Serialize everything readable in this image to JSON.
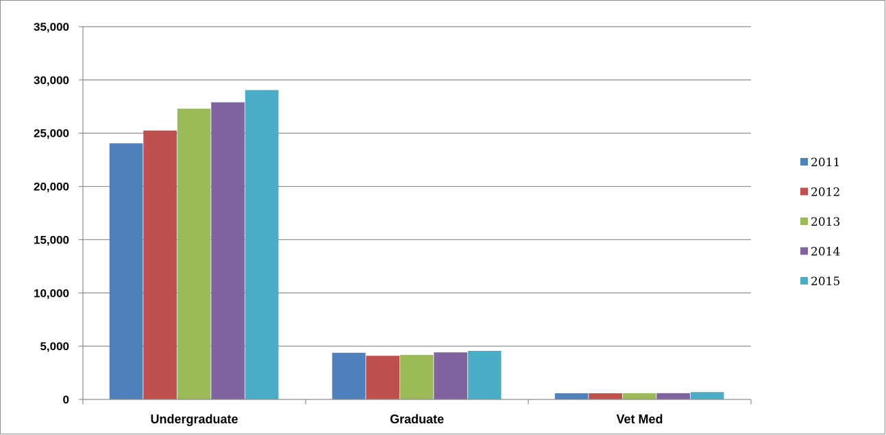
{
  "chart_data": {
    "type": "bar",
    "title": "",
    "xlabel": "",
    "ylabel": "",
    "categories": [
      "Undergraduate",
      "Graduate",
      "Vet Med"
    ],
    "series": [
      {
        "name": "2011",
        "values": [
          24050,
          4380,
          580
        ]
      },
      {
        "name": "2012",
        "values": [
          25250,
          4100,
          580
        ]
      },
      {
        "name": "2013",
        "values": [
          27300,
          4180,
          590
        ]
      },
      {
        "name": "2014",
        "values": [
          27900,
          4420,
          590
        ]
      },
      {
        "name": "2015",
        "values": [
          29050,
          4560,
          690
        ]
      }
    ],
    "ylim": [
      0,
      35000
    ],
    "yticks": [
      0,
      5000,
      10000,
      15000,
      20000,
      25000,
      30000,
      35000
    ],
    "ytick_labels": [
      "0",
      "5,000",
      "10,000",
      "15,000",
      "20,000",
      "25,000",
      "30,000",
      "35,000"
    ],
    "colors": [
      "#4F81BD",
      "#C0504D",
      "#9BBB59",
      "#8064A2",
      "#4BACC6"
    ],
    "grid": true,
    "legend_position": "right"
  }
}
